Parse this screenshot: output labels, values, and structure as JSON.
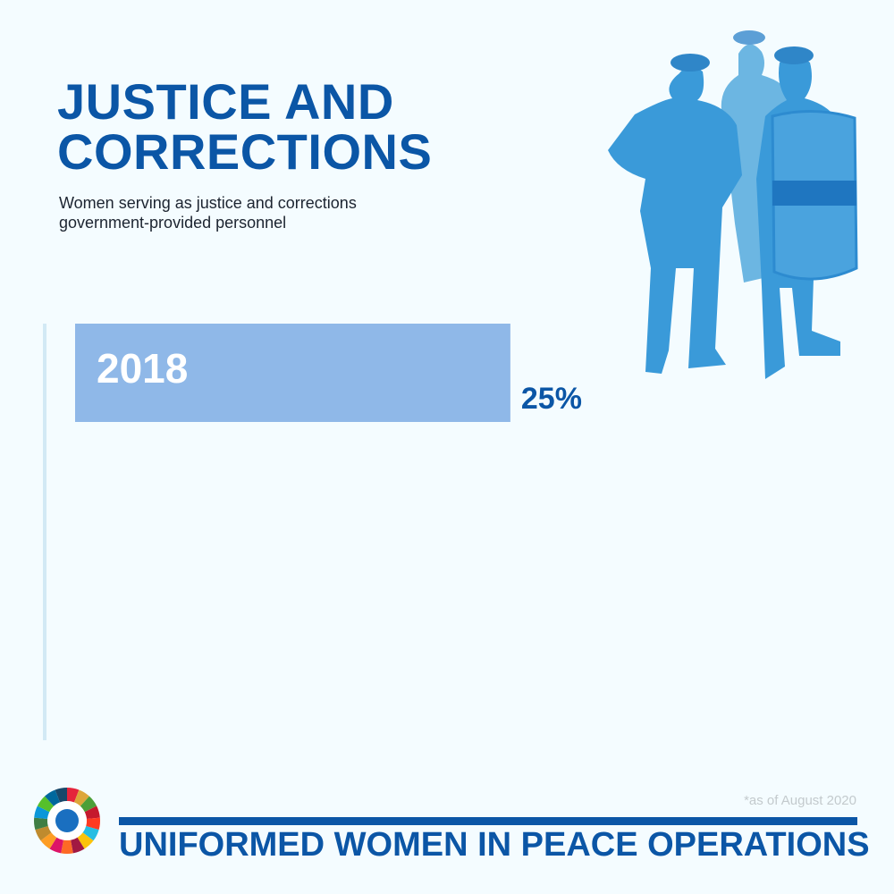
{
  "chart_data": {
    "type": "bar",
    "orientation": "horizontal",
    "title": "JUSTICE AND CORRECTIONS",
    "subtitle": "Women serving as justice and corrections government-provided personnel",
    "categories": [
      "2018"
    ],
    "values": [
      25
    ],
    "value_labels": [
      "25%"
    ],
    "color": "#8fb8e8",
    "xlim": [
      0,
      40
    ],
    "note": "*as of August 2020",
    "footer": "UNIFORMED WOMEN IN PEACE OPERATIONS"
  }
}
